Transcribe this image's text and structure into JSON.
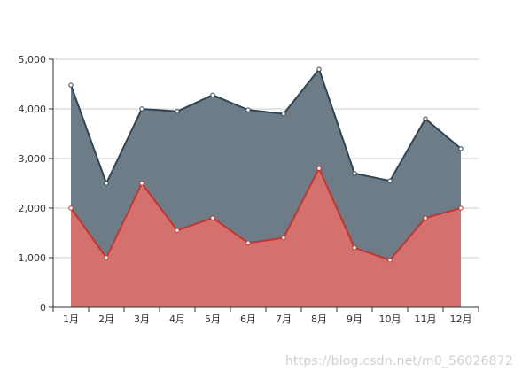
{
  "chart_data": {
    "type": "area",
    "categories": [
      "1月",
      "2月",
      "3月",
      "4月",
      "5月",
      "6月",
      "7月",
      "8月",
      "9月",
      "10月",
      "11月",
      "12月"
    ],
    "series": [
      {
        "values": [
          2000,
          1000,
          2500,
          1550,
          1800,
          1300,
          1400,
          2800,
          1200,
          950,
          1800,
          2000
        ],
        "color": "#c23531",
        "fill": "#d4706e"
      },
      {
        "values": [
          4480,
          2500,
          4000,
          3950,
          4280,
          3980,
          3900,
          4800,
          2700,
          2550,
          3800,
          3200
        ],
        "color": "#2f4554",
        "fill": "#6e7c87"
      }
    ],
    "ylim": [
      0,
      5000
    ],
    "yticks": [
      "0",
      "1,000",
      "2,000",
      "3,000",
      "4,000",
      "5,000"
    ],
    "grid": true
  },
  "watermark": "https://blog.csdn.net/m0_56026872"
}
